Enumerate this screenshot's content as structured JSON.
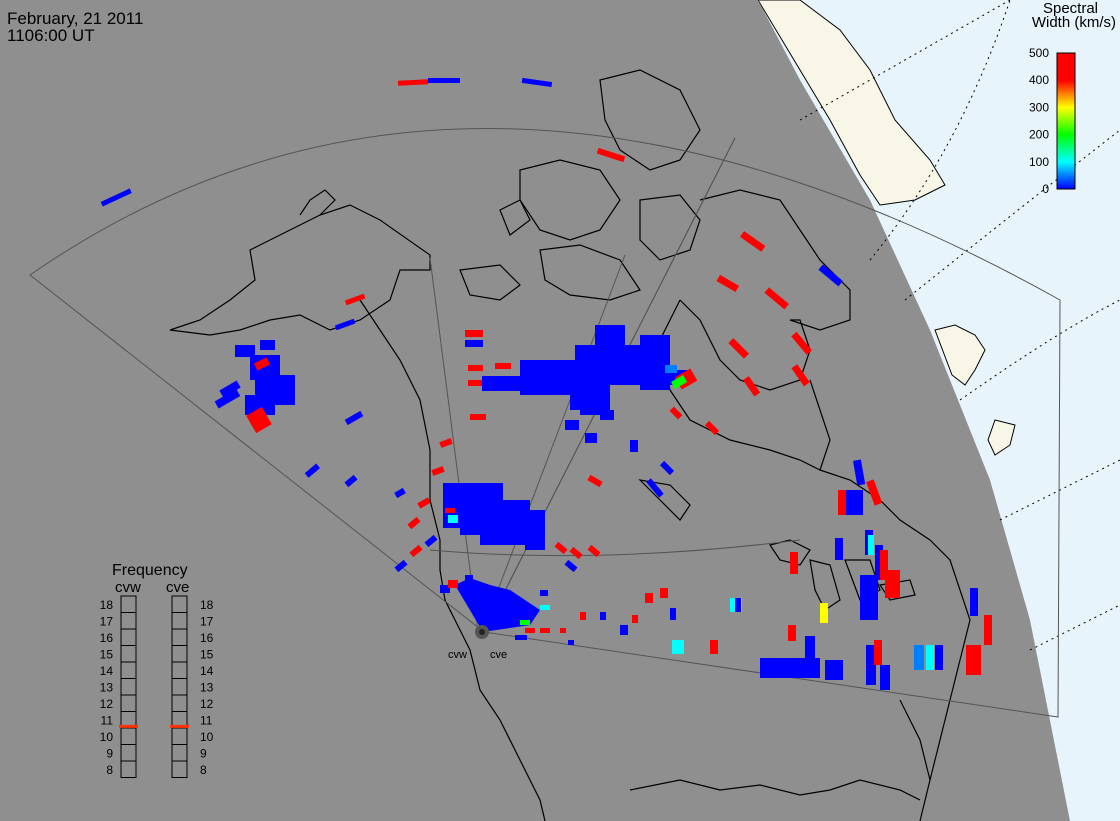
{
  "header": {
    "date": "February, 21 2011",
    "time": "1106:00 UT"
  },
  "legend": {
    "title_line1": "Spectral",
    "title_line2": "Width (km/s)",
    "ticks": [
      "500",
      "400",
      "300",
      "200",
      "100",
      "0"
    ],
    "tick_values": [
      500,
      400,
      300,
      200,
      100,
      0
    ],
    "colors": [
      "#ff0000",
      "#ff8c00",
      "#ffff00",
      "#00ff00",
      "#00ffff",
      "#0000ff"
    ]
  },
  "frequency": {
    "title": "Frequency",
    "radar_west": "cvw",
    "radar_east": "cve",
    "levels": [
      "18",
      "17",
      "16",
      "15",
      "14",
      "13",
      "12",
      "11",
      "10",
      "9",
      "8"
    ],
    "level_values": [
      18,
      17,
      16,
      15,
      14,
      13,
      12,
      11,
      10,
      9,
      8
    ],
    "west_value": 10.6,
    "east_value": 10.6,
    "marker_color": "#ff3300"
  },
  "radars": {
    "west_label": "cvw",
    "east_label": "cve"
  },
  "colors": {
    "background": "#8f8f8f",
    "ocean_light": "#e8f4fb",
    "land_light": "#f8f6e6",
    "coast": "#000000",
    "fov": "#555555"
  }
}
